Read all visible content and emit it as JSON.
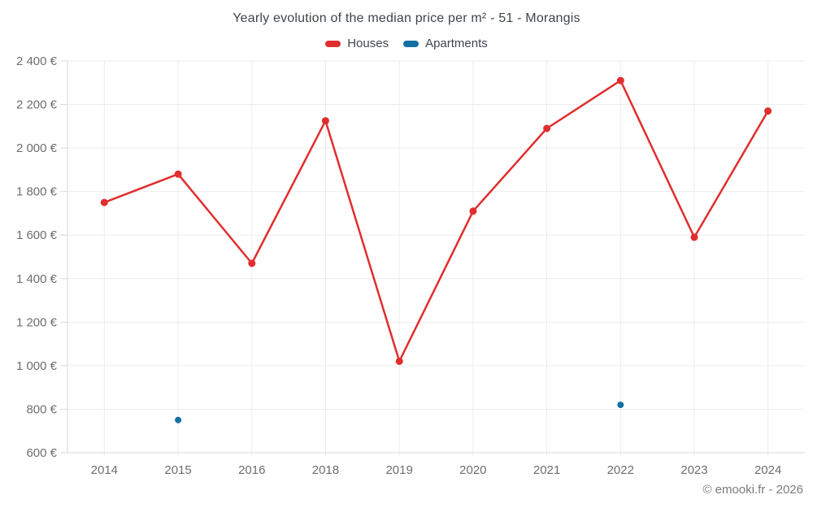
{
  "title": "Yearly evolution of the median price per m² - 51 - Morangis",
  "legend": [
    {
      "label": "Houses",
      "color": "#e02e2e"
    },
    {
      "label": "Apartments",
      "color": "#1370a3"
    }
  ],
  "footer": {
    "text": "© emooki.fr - 2026"
  },
  "colors": {
    "houses": "#e02e2e",
    "apartments": "#1370a3",
    "grid": "#ededed",
    "axis": "#d9d9d9",
    "tick_label": "#6e6e6e",
    "title_text": "#3f454c",
    "footer_text": "#7c7c7c",
    "background": "#ffffff"
  },
  "chart_data": {
    "type": "line",
    "title": "Yearly evolution of the median price per m² - 51 - Morangis",
    "categories": [
      "2014",
      "2015",
      "2016",
      "2018",
      "2019",
      "2020",
      "2021",
      "2022",
      "2023",
      "2024"
    ],
    "series": [
      {
        "name": "Houses",
        "type": "line",
        "color": "#e02e2e",
        "values": [
          1750,
          1880,
          1470,
          2125,
          1020,
          1710,
          2090,
          2310,
          1590,
          2170
        ]
      },
      {
        "name": "Apartments",
        "type": "scatter",
        "color": "#1370a3",
        "values": [
          null,
          750,
          null,
          null,
          null,
          null,
          null,
          820,
          null,
          null
        ]
      }
    ],
    "ylim": [
      600,
      2400
    ],
    "ytick_step": 200,
    "ytick_labels": [
      "600 €",
      "800 €",
      "1 000 €",
      "1 200 €",
      "1 400 €",
      "1 600 €",
      "1 800 €",
      "2 000 €",
      "2 200 €",
      "2 400 €"
    ],
    "xlabel": "",
    "ylabel": "",
    "grid": true,
    "legend_position": "top",
    "currency": "€"
  }
}
